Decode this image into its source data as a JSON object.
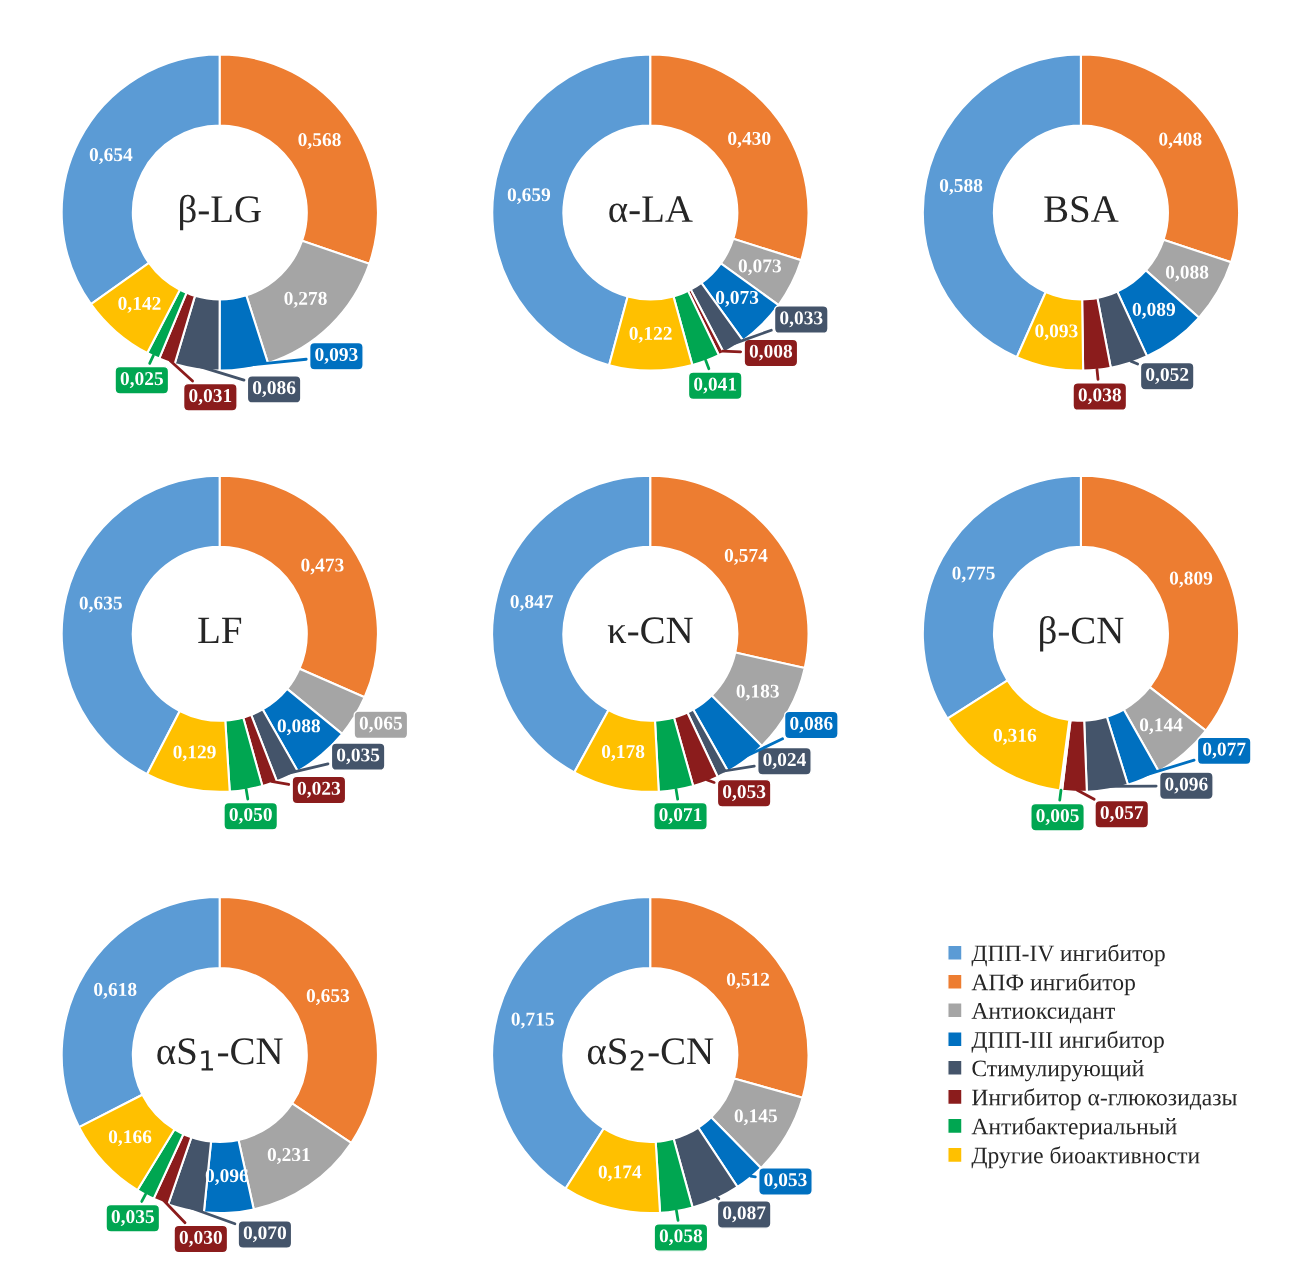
{
  "chart_data": [
    {
      "type": "donut",
      "title": "β-LG",
      "legend": "bottom right",
      "categories": [
        "ДПП-IV ингибитор",
        "АПФ ингибитор",
        "Антиоксидант",
        "ДПП-III ингибитор",
        "Стимулирующий",
        "Ингибитор α-глюкозидазы",
        "Антибактериальный",
        "Другие биоактивности"
      ],
      "colors": [
        "#5b9bd5",
        "#ed7d31",
        "#a5a5a5",
        "#0070c0",
        "#44546a",
        "#8b1c1c",
        "#00a651",
        "#ffc000"
      ],
      "values": [
        0.654,
        0.568,
        0.278,
        0.093,
        0.086,
        0.031,
        0.025,
        0.142
      ],
      "value_labels": [
        "0,654",
        "0,568",
        "0,278",
        "0,093",
        "0,086",
        "0,031",
        "0,025",
        "0,142"
      ]
    },
    {
      "type": "donut",
      "title": "α-LA",
      "categories": [
        null,
        null,
        null,
        null,
        null,
        null,
        null,
        null
      ],
      "colors": [
        "#5b9bd5",
        "#ed7d31",
        "#a5a5a5",
        "#0070c0",
        "#44546a",
        "#8b1c1c",
        "#00a651",
        "#ffc000"
      ],
      "values": [
        0.659,
        0.43,
        0.073,
        0.073,
        0.033,
        0.008,
        0.041,
        0.122
      ],
      "value_labels": [
        "0,659",
        "0,430",
        "0,073",
        "0,073",
        "0,033",
        "0,008",
        "0,041",
        "0,122"
      ]
    },
    {
      "type": "donut",
      "title": "BSA",
      "categories": [
        null,
        null,
        null,
        null,
        null,
        null,
        null,
        null
      ],
      "colors": [
        "#5b9bd5",
        "#ed7d31",
        "#a5a5a5",
        "#0070c0",
        "#44546a",
        "#8b1c1c",
        "#00a651",
        "#ffc000"
      ],
      "values": [
        0.588,
        0.408,
        0.088,
        0.089,
        0.052,
        0.038,
        null,
        0.093
      ],
      "value_labels": [
        "0,588",
        "0,408",
        "0,088",
        "0,089",
        "0,052",
        "0,038",
        null,
        "0,093"
      ]
    },
    {
      "type": "donut",
      "title": "LF",
      "categories": [
        null,
        null,
        null,
        null,
        null,
        null,
        null,
        null
      ],
      "colors": [
        "#5b9bd5",
        "#ed7d31",
        "#a5a5a5",
        "#0070c0",
        "#44546a",
        "#8b1c1c",
        "#00a651",
        "#ffc000"
      ],
      "values": [
        0.635,
        0.473,
        0.065,
        0.088,
        0.035,
        0.023,
        0.05,
        0.129
      ],
      "value_labels": [
        "0,635",
        "0,473",
        "0,065",
        "0,088",
        "0,035",
        "0,023",
        "0,050",
        "0,129"
      ]
    },
    {
      "type": "donut",
      "title": "κ-CN",
      "categories": [
        null,
        null,
        null,
        null,
        null,
        null,
        null,
        null
      ],
      "colors": [
        "#5b9bd5",
        "#ed7d31",
        "#a5a5a5",
        "#0070c0",
        "#44546a",
        "#8b1c1c",
        "#00a651",
        "#ffc000"
      ],
      "values": [
        0.847,
        0.574,
        0.183,
        0.086,
        0.024,
        0.053,
        0.071,
        0.178
      ],
      "value_labels": [
        "0,847",
        "0,574",
        "0,183",
        "0,086",
        "0,024",
        "0,053",
        "0,071",
        "0,178"
      ]
    },
    {
      "type": "donut",
      "title": "β-CN",
      "categories": [
        null,
        null,
        null,
        null,
        null,
        null,
        null,
        null
      ],
      "colors": [
        "#5b9bd5",
        "#ed7d31",
        "#a5a5a5",
        "#0070c0",
        "#44546a",
        "#8b1c1c",
        "#00a651",
        "#ffc000"
      ],
      "values": [
        0.775,
        0.809,
        0.144,
        0.077,
        0.096,
        0.057,
        0.005,
        0.316
      ],
      "value_labels": [
        "0,775",
        "0,809",
        "0,144",
        "0,077",
        "0,096",
        "0,057",
        "0,005",
        "0,316"
      ]
    },
    {
      "type": "donut",
      "title": "αS$_{1}$-CN",
      "categories": [
        null,
        null,
        null,
        null,
        null,
        null,
        null,
        null
      ],
      "colors": [
        "#5b9bd5",
        "#ed7d31",
        "#a5a5a5",
        "#0070c0",
        "#44546a",
        "#8b1c1c",
        "#00a651",
        "#ffc000"
      ],
      "values": [
        0.618,
        0.653,
        0.231,
        0.096,
        0.07,
        0.03,
        0.035,
        0.166
      ],
      "value_labels": [
        "0,618",
        "0,653",
        "0,231",
        "0,096",
        "0,070",
        "0,030",
        "0,035",
        "0,166"
      ]
    },
    {
      "type": "donut",
      "title": "αS$_{2}$-CN",
      "categories": [
        null,
        null,
        null,
        null,
        null,
        null,
        null,
        null
      ],
      "colors": [
        "#5b9bd5",
        "#ed7d31",
        "#a5a5a5",
        "#0070c0",
        "#44546a",
        "#8b1c1c",
        "#00a651",
        "#ffc000"
      ],
      "values": [
        0.715,
        0.512,
        0.145,
        0.053,
        0.087,
        null,
        0.058,
        0.174
      ],
      "value_labels": [
        "0,715",
        "0,512",
        "0,145",
        "0,053",
        "0,087",
        null,
        "0,058",
        "0,174"
      ]
    }
  ]
}
